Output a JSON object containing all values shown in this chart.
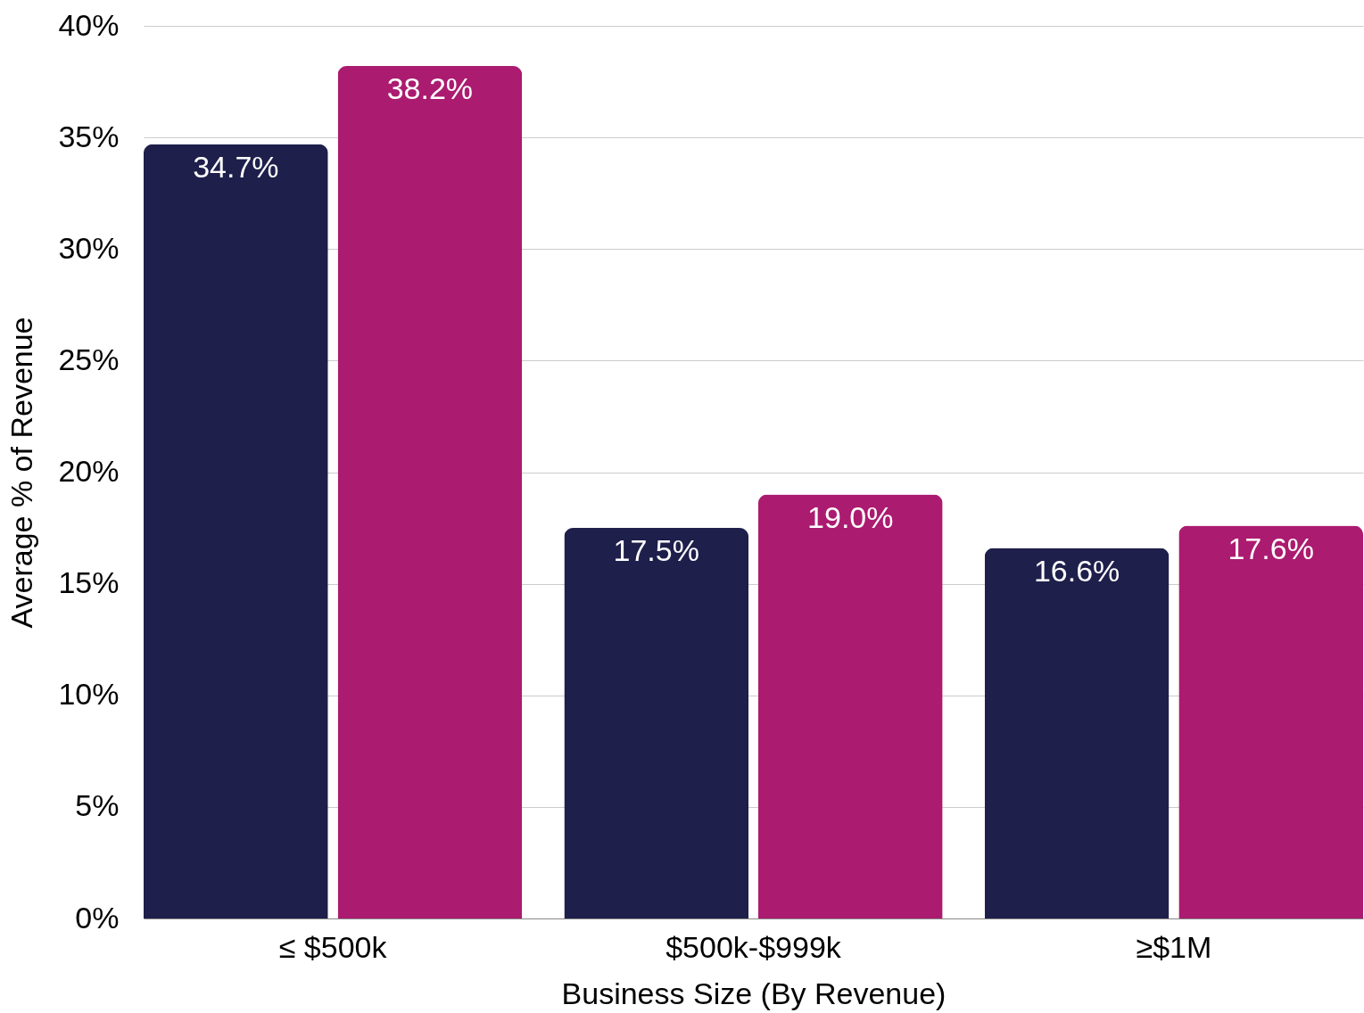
{
  "chart_data": {
    "type": "bar",
    "xlabel": "Business Size (By Revenue)",
    "ylabel": "Average % of Revenue",
    "categories": [
      "≤ $500k",
      "$500k-$999k",
      "≥$1M"
    ],
    "series": [
      {
        "color": "#1e1f4b",
        "values": [
          34.7,
          17.5,
          16.6
        ],
        "value_labels": [
          "34.7%",
          "17.5%",
          "16.6%"
        ]
      },
      {
        "color": "#ab1b70",
        "values": [
          38.2,
          19.0,
          17.6
        ],
        "value_labels": [
          "38.2%",
          "19.0%",
          "17.6%"
        ]
      }
    ],
    "ylim": [
      0,
      40
    ],
    "yticks": [
      {
        "value": 0,
        "label": "0%"
      },
      {
        "value": 5,
        "label": "5%"
      },
      {
        "value": 10,
        "label": "10%"
      },
      {
        "value": 15,
        "label": "15%"
      },
      {
        "value": 20,
        "label": "20%"
      },
      {
        "value": 25,
        "label": "25%"
      },
      {
        "value": 30,
        "label": "30%"
      },
      {
        "value": 35,
        "label": "35%"
      },
      {
        "value": 40,
        "label": "40%"
      }
    ],
    "grid": "y",
    "legend": false
  }
}
